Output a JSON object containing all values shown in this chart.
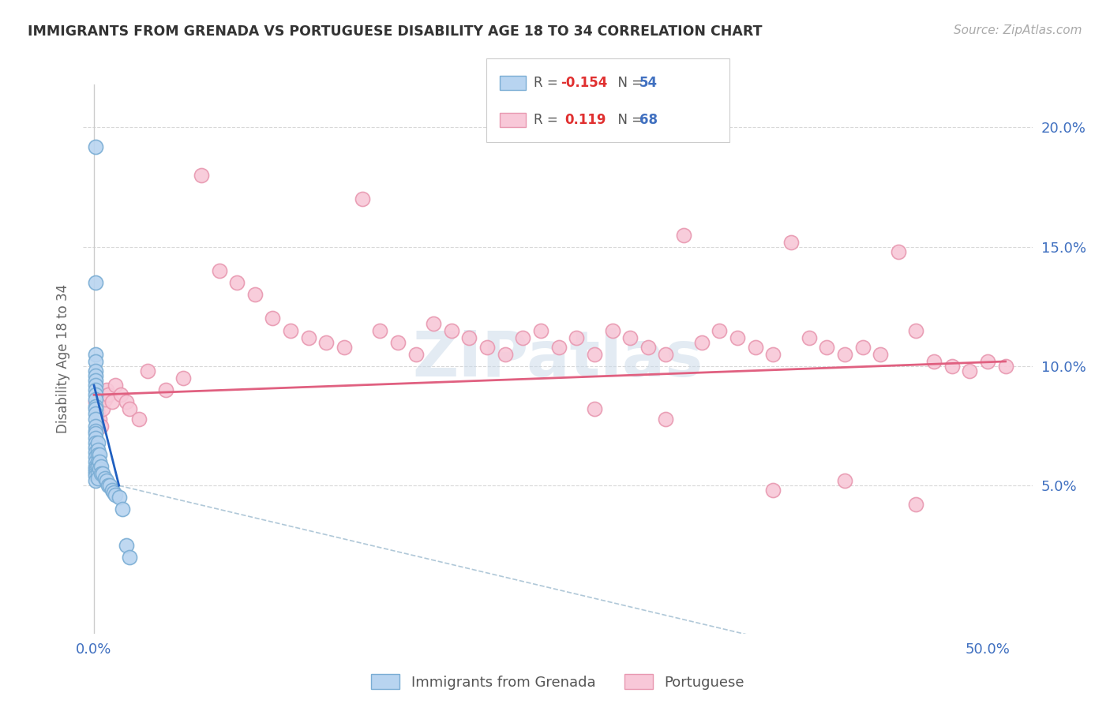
{
  "title": "IMMIGRANTS FROM GRENADA VS PORTUGUESE DISABILITY AGE 18 TO 34 CORRELATION CHART",
  "source": "Source: ZipAtlas.com",
  "ylabel": "Disability Age 18 to 34",
  "xlim": [
    -0.006,
    0.525
  ],
  "ylim": [
    -0.012,
    0.218
  ],
  "x_tick_positions": [
    0.0,
    0.1,
    0.2,
    0.3,
    0.4,
    0.5
  ],
  "x_tick_labels": [
    "0.0%",
    "",
    "",
    "",
    "",
    "50.0%"
  ],
  "y_tick_positions": [
    0.05,
    0.1,
    0.15,
    0.2
  ],
  "y_tick_labels": [
    "5.0%",
    "10.0%",
    "15.0%",
    "20.0%"
  ],
  "grenada_color_face": "#b8d4f0",
  "grenada_color_edge": "#7aadd4",
  "portuguese_color_face": "#f8c8d8",
  "portuguese_color_edge": "#e898b0",
  "grenada_line_color": "#2060c0",
  "portuguese_line_color": "#e06080",
  "dashed_line_color": "#b0c8d8",
  "grenada_R": "-0.154",
  "grenada_N": "54",
  "portuguese_R": "0.119",
  "portuguese_N": "68",
  "watermark": "ZIPatlas",
  "grid_color": "#d8d8d8",
  "tick_color": "#4070c0",
  "label_color": "#666666",
  "grenada_x": [
    0.001,
    0.001,
    0.001,
    0.001,
    0.001,
    0.001,
    0.001,
    0.001,
    0.001,
    0.001,
    0.001,
    0.001,
    0.001,
    0.001,
    0.001,
    0.001,
    0.001,
    0.001,
    0.001,
    0.001,
    0.001,
    0.001,
    0.001,
    0.001,
    0.001,
    0.001,
    0.001,
    0.001,
    0.001,
    0.001,
    0.002,
    0.002,
    0.002,
    0.002,
    0.002,
    0.002,
    0.002,
    0.003,
    0.003,
    0.003,
    0.004,
    0.004,
    0.005,
    0.006,
    0.007,
    0.008,
    0.009,
    0.01,
    0.011,
    0.012,
    0.014,
    0.016,
    0.018,
    0.02
  ],
  "grenada_y": [
    0.192,
    0.135,
    0.105,
    0.102,
    0.098,
    0.096,
    0.094,
    0.092,
    0.09,
    0.088,
    0.086,
    0.083,
    0.082,
    0.08,
    0.078,
    0.075,
    0.073,
    0.072,
    0.07,
    0.068,
    0.066,
    0.064,
    0.062,
    0.06,
    0.058,
    0.057,
    0.056,
    0.055,
    0.054,
    0.052,
    0.068,
    0.065,
    0.063,
    0.06,
    0.058,
    0.055,
    0.053,
    0.063,
    0.06,
    0.057,
    0.058,
    0.055,
    0.055,
    0.053,
    0.052,
    0.05,
    0.05,
    0.048,
    0.047,
    0.046,
    0.045,
    0.04,
    0.025,
    0.02
  ],
  "portuguese_x": [
    0.001,
    0.002,
    0.003,
    0.004,
    0.005,
    0.006,
    0.007,
    0.008,
    0.01,
    0.012,
    0.015,
    0.018,
    0.02,
    0.025,
    0.03,
    0.04,
    0.05,
    0.06,
    0.07,
    0.08,
    0.09,
    0.1,
    0.11,
    0.12,
    0.13,
    0.14,
    0.15,
    0.16,
    0.17,
    0.18,
    0.19,
    0.2,
    0.21,
    0.22,
    0.23,
    0.24,
    0.25,
    0.26,
    0.27,
    0.28,
    0.29,
    0.3,
    0.31,
    0.32,
    0.33,
    0.34,
    0.35,
    0.36,
    0.37,
    0.38,
    0.39,
    0.4,
    0.41,
    0.42,
    0.43,
    0.44,
    0.45,
    0.46,
    0.47,
    0.48,
    0.49,
    0.5,
    0.51,
    0.32,
    0.28,
    0.42,
    0.38,
    0.46
  ],
  "portuguese_y": [
    0.085,
    0.08,
    0.078,
    0.075,
    0.082,
    0.086,
    0.09,
    0.088,
    0.085,
    0.092,
    0.088,
    0.085,
    0.082,
    0.078,
    0.098,
    0.09,
    0.095,
    0.18,
    0.14,
    0.135,
    0.13,
    0.12,
    0.115,
    0.112,
    0.11,
    0.108,
    0.17,
    0.115,
    0.11,
    0.105,
    0.118,
    0.115,
    0.112,
    0.108,
    0.105,
    0.112,
    0.115,
    0.108,
    0.112,
    0.105,
    0.115,
    0.112,
    0.108,
    0.105,
    0.155,
    0.11,
    0.115,
    0.112,
    0.108,
    0.105,
    0.152,
    0.112,
    0.108,
    0.105,
    0.108,
    0.105,
    0.148,
    0.115,
    0.102,
    0.1,
    0.098,
    0.102,
    0.1,
    0.078,
    0.082,
    0.052,
    0.048,
    0.042
  ]
}
